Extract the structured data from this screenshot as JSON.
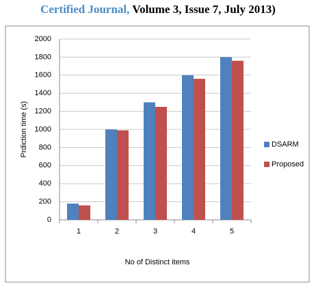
{
  "header": {
    "journal": "Certified Journal,",
    "rest": "Volume 3, Issue 7, July 2013)"
  },
  "chart_data": {
    "type": "bar",
    "xlabel": "No of Distinct items",
    "ylabel": "Prdiction time (s)",
    "categories": [
      "1",
      "2",
      "3",
      "4",
      "5"
    ],
    "series": [
      {
        "name": "DSARM",
        "color": "#4f81bd",
        "values": [
          180,
          1000,
          1300,
          1600,
          1800
        ]
      },
      {
        "name": "Proposed",
        "color": "#c0504d",
        "values": [
          160,
          990,
          1250,
          1560,
          1760
        ]
      }
    ],
    "ylim": [
      0,
      2000
    ],
    "yticks": [
      0,
      200,
      400,
      600,
      800,
      1000,
      1200,
      1400,
      1600,
      1800,
      2000
    ],
    "grid": true,
    "legend": "right"
  }
}
